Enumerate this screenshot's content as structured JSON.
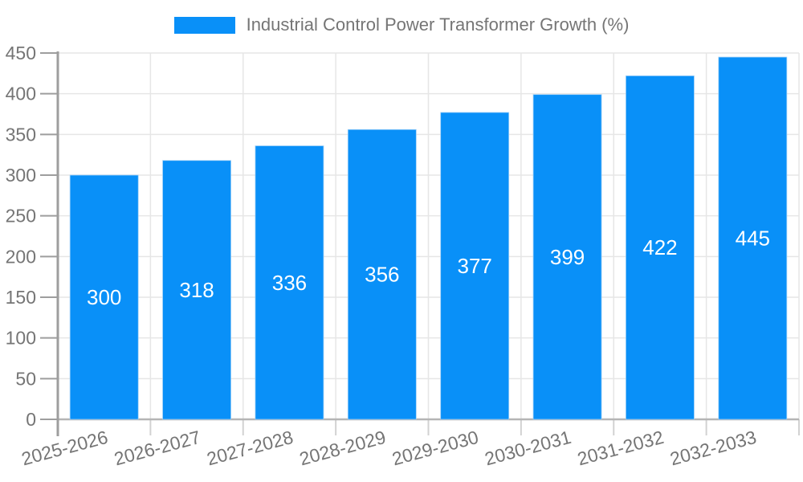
{
  "chart_data": {
    "type": "bar",
    "title": "Industrial Control Power Transformer Growth (%)",
    "categories": [
      "2025-2026",
      "2026-2027",
      "2027-2028",
      "2028-2029",
      "2029-2030",
      "2030-2031",
      "2031-2032",
      "2032-2033"
    ],
    "values": [
      300,
      318,
      336,
      356,
      377,
      399,
      422,
      445
    ],
    "yticks": [
      0,
      50,
      100,
      150,
      200,
      250,
      300,
      350,
      400,
      450
    ],
    "ylim": [
      0,
      450
    ],
    "xlabel": "",
    "ylabel": "",
    "grid": true,
    "legend_position": "top",
    "x_label_rotation_deg": -15,
    "colors": {
      "bar": "#0990f8",
      "bar_edge": "#9ecff7",
      "bar_label": "#ffffff",
      "axis_text": "#757575",
      "grid_line": "#e6e6e6",
      "axis_line": "#9e9e9e",
      "baseline": "#b5b5b5",
      "minor_tick": "#d2d2d2",
      "background": "#ffffff"
    }
  }
}
